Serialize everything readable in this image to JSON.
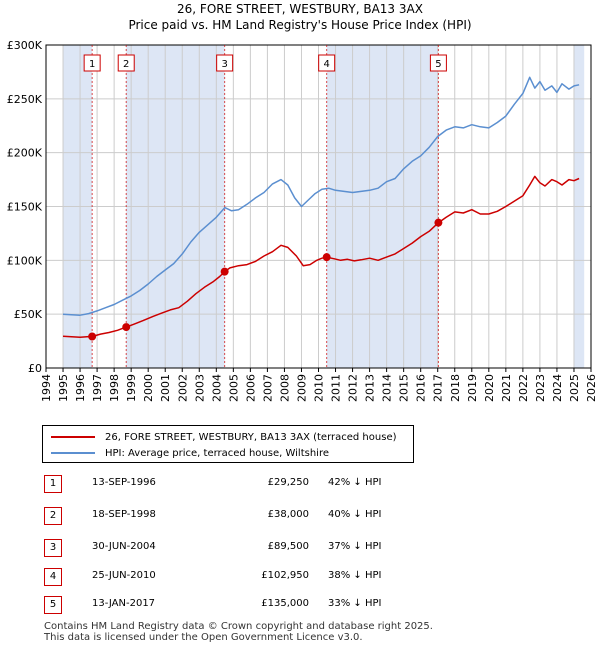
{
  "title_line1": "26, FORE STREET, WESTBURY, BA13 3AX",
  "title_line2": "Price paid vs. HM Land Registry's House Price Index (HPI)",
  "colors": {
    "property": "#cc0000",
    "hpi": "#5b8fd0",
    "shade": "#dde6f5",
    "grid": "#cccccc",
    "marker_border": "#cc0000"
  },
  "chart_data": {
    "type": "line",
    "xlim": [
      1994,
      2026
    ],
    "ylim": [
      0,
      300000
    ],
    "yticks": [
      {
        "value": 0,
        "label": "£0"
      },
      {
        "value": 50000,
        "label": "£50K"
      },
      {
        "value": 100000,
        "label": "£100K"
      },
      {
        "value": 150000,
        "label": "£150K"
      },
      {
        "value": 200000,
        "label": "£200K"
      },
      {
        "value": 250000,
        "label": "£250K"
      },
      {
        "value": 300000,
        "label": "£300K"
      }
    ],
    "xticks": [
      "1994",
      "1995",
      "1996",
      "1997",
      "1998",
      "1999",
      "2000",
      "2001",
      "2002",
      "2003",
      "2004",
      "2005",
      "2006",
      "2007",
      "2008",
      "2009",
      "2010",
      "2011",
      "2012",
      "2013",
      "2014",
      "2015",
      "2016",
      "2017",
      "2018",
      "2019",
      "2020",
      "2021",
      "2022",
      "2023",
      "2024",
      "2025",
      "2026"
    ],
    "shaded_ranges": [
      [
        1995.0,
        1996.71
      ],
      [
        1998.71,
        2004.49
      ],
      [
        2010.48,
        2017.04
      ],
      [
        2025.0,
        2025.6
      ]
    ],
    "series": [
      {
        "name": "26, FORE STREET, WESTBURY, BA13 3AX (terraced house)",
        "x": [
          1995.0,
          1995.5,
          1996.0,
          1996.4,
          1996.71,
          1997.2,
          1997.7,
          1998.2,
          1998.71,
          1999.2,
          1999.7,
          2000.3,
          2000.8,
          2001.3,
          2001.8,
          2002.3,
          2002.8,
          2003.3,
          2003.8,
          2004.2,
          2004.49,
          2004.8,
          2005.3,
          2005.8,
          2006.3,
          2006.8,
          2007.3,
          2007.8,
          2008.2,
          2008.7,
          2009.1,
          2009.5,
          2009.9,
          2010.2,
          2010.48,
          2010.9,
          2011.3,
          2011.7,
          2012.1,
          2012.5,
          2013.0,
          2013.5,
          2014.0,
          2014.5,
          2015.0,
          2015.5,
          2016.0,
          2016.5,
          2017.04,
          2017.5,
          2018.0,
          2018.5,
          2019.0,
          2019.5,
          2020.0,
          2020.5,
          2021.0,
          2021.5,
          2022.0,
          2022.4,
          2022.7,
          2023.0,
          2023.3,
          2023.7,
          2024.0,
          2024.3,
          2024.7,
          2025.0,
          2025.3
        ],
        "y": [
          29500,
          29000,
          28500,
          29000,
          29250,
          31500,
          33000,
          35000,
          38000,
          41000,
          44000,
          48000,
          51000,
          54000,
          56000,
          62000,
          69000,
          75000,
          80000,
          85000,
          89500,
          93000,
          95000,
          96000,
          99000,
          104000,
          108000,
          114000,
          112000,
          104000,
          95000,
          96000,
          100000,
          102000,
          102950,
          101500,
          100000,
          101000,
          99500,
          100500,
          102000,
          100000,
          103000,
          106000,
          111000,
          116000,
          122000,
          127000,
          135000,
          140000,
          145000,
          144000,
          147000,
          143000,
          143000,
          145500,
          150000,
          155000,
          160000,
          170000,
          178000,
          172000,
          169000,
          175000,
          173000,
          170000,
          175000,
          174000,
          176000
        ]
      },
      {
        "name": "HPI: Average price, terraced house, Wiltshire",
        "x": [
          1995.0,
          1995.5,
          1996.0,
          1996.5,
          1997.0,
          1997.5,
          1998.0,
          1998.5,
          1999.0,
          1999.5,
          2000.0,
          2000.5,
          2001.0,
          2001.5,
          2002.0,
          2002.5,
          2003.0,
          2003.5,
          2004.0,
          2004.5,
          2004.9,
          2005.3,
          2005.8,
          2006.3,
          2006.8,
          2007.3,
          2007.8,
          2008.2,
          2008.6,
          2009.0,
          2009.4,
          2009.8,
          2010.2,
          2010.6,
          2011.0,
          2011.5,
          2012.0,
          2012.5,
          2013.0,
          2013.5,
          2014.0,
          2014.5,
          2015.0,
          2015.5,
          2016.0,
          2016.5,
          2017.0,
          2017.5,
          2018.0,
          2018.5,
          2019.0,
          2019.5,
          2020.0,
          2020.5,
          2021.0,
          2021.5,
          2022.0,
          2022.4,
          2022.7,
          2023.0,
          2023.3,
          2023.7,
          2024.0,
          2024.3,
          2024.7,
          2025.0,
          2025.3
        ],
        "y": [
          50000,
          49500,
          49000,
          50500,
          53000,
          56000,
          59000,
          63000,
          67000,
          72000,
          78000,
          85000,
          91000,
          97000,
          106000,
          117000,
          126000,
          133000,
          140000,
          149000,
          146000,
          147000,
          152000,
          158000,
          163000,
          171000,
          175000,
          170000,
          158000,
          150000,
          156000,
          162000,
          166000,
          167000,
          165000,
          164000,
          163000,
          164000,
          165000,
          167000,
          173000,
          176000,
          185000,
          192000,
          197000,
          205000,
          215000,
          221000,
          224000,
          223000,
          226000,
          224000,
          223000,
          228000,
          234000,
          245000,
          255000,
          270000,
          260000,
          266000,
          258000,
          262000,
          256000,
          264000,
          259000,
          262000,
          263000
        ]
      }
    ],
    "markers": [
      {
        "label": "1",
        "x": 1996.71,
        "y": 29250
      },
      {
        "label": "2",
        "x": 1998.71,
        "y": 38000
      },
      {
        "label": "3",
        "x": 2004.49,
        "y": 89500
      },
      {
        "label": "4",
        "x": 2010.48,
        "y": 102950
      },
      {
        "label": "5",
        "x": 2017.04,
        "y": 135000
      }
    ]
  },
  "legend": {
    "property_label": "26, FORE STREET, WESTBURY, BA13 3AX (terraced house)",
    "hpi_label": "HPI: Average price, terraced house, Wiltshire"
  },
  "transactions": [
    {
      "num": "1",
      "date": "13-SEP-1996",
      "price": "£29,250",
      "hpi": "42% ↓ HPI"
    },
    {
      "num": "2",
      "date": "18-SEP-1998",
      "price": "£38,000",
      "hpi": "40% ↓ HPI"
    },
    {
      "num": "3",
      "date": "30-JUN-2004",
      "price": "£89,500",
      "hpi": "37% ↓ HPI"
    },
    {
      "num": "4",
      "date": "25-JUN-2010",
      "price": "£102,950",
      "hpi": "38% ↓ HPI"
    },
    {
      "num": "5",
      "date": "13-JAN-2017",
      "price": "£135,000",
      "hpi": "33% ↓ HPI"
    }
  ],
  "footer_line1": "Contains HM Land Registry data © Crown copyright and database right 2025.",
  "footer_line2": "This data is licensed under the Open Government Licence v3.0."
}
